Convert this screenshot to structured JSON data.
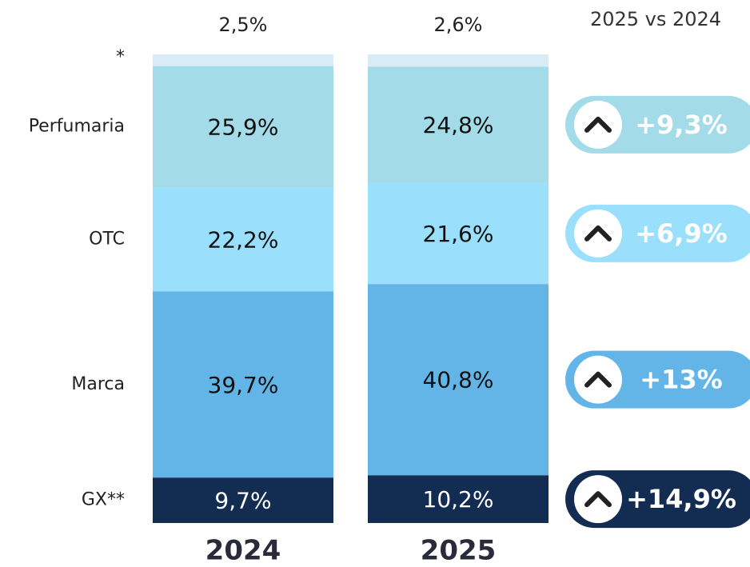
{
  "chart_data": {
    "type": "bar",
    "stacked": true,
    "categories": [
      "2024",
      "2025"
    ],
    "ylim": [
      0,
      100
    ],
    "change_title": "2025 vs 2024",
    "series": [
      {
        "name": "GX**",
        "color": "#132c52",
        "label_color": "#ffffff",
        "values": [
          9.7,
          10.2
        ],
        "value_labels": [
          "9,7%",
          "10,2%"
        ],
        "change": "+14,9%"
      },
      {
        "name": "Marca",
        "color": "#63b5e8",
        "label_color": "#111111",
        "values": [
          39.7,
          40.8
        ],
        "value_labels": [
          "39,7%",
          "40,8%"
        ],
        "change": "+13%"
      },
      {
        "name": "OTC",
        "color": "#9adffc",
        "label_color": "#111111",
        "values": [
          22.2,
          21.6
        ],
        "value_labels": [
          "22,2%",
          "21,6%"
        ],
        "change": "+6,9%"
      },
      {
        "name": "Perfumaria",
        "color": "#a3dbe8",
        "label_color": "#111111",
        "values": [
          25.9,
          24.8
        ],
        "value_labels": [
          "25,9%",
          "24,8%"
        ],
        "change": "+9,3%"
      },
      {
        "name": "*",
        "color": "#d9ecf5",
        "label_color": "#222222",
        "values": [
          2.5,
          2.6
        ],
        "value_labels": [
          "2,5%",
          "2,6%"
        ],
        "label_outside": true
      }
    ]
  }
}
